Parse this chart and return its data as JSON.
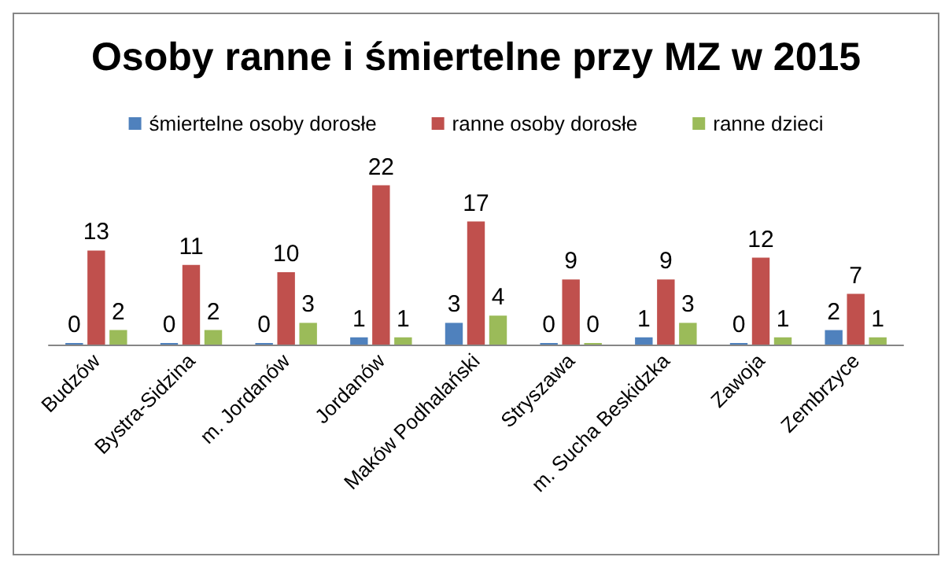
{
  "chart_data": {
    "type": "bar",
    "title": "Osoby ranne i śmiertelne przy MZ w 2015",
    "categories": [
      "Budzów",
      "Bystra-Sidzina",
      "m. Jordanów",
      "Jordanów",
      "Maków Podhalański",
      "Stryszawa",
      "m. Sucha Beskidzka",
      "Zawoja",
      "Zembrzyce"
    ],
    "series": [
      {
        "name": "śmiertelne osoby dorosłe",
        "color": "#4f81bd",
        "values": [
          0,
          0,
          0,
          1,
          3,
          0,
          1,
          0,
          2
        ]
      },
      {
        "name": "ranne osoby dorosłe",
        "color": "#c0504d",
        "values": [
          13,
          11,
          10,
          22,
          17,
          9,
          9,
          12,
          7
        ]
      },
      {
        "name": "ranne dzieci",
        "color": "#9bbb59",
        "values": [
          2,
          2,
          3,
          1,
          4,
          0,
          3,
          1,
          1
        ]
      }
    ],
    "data_labels": true,
    "legend": "top",
    "tick_labels": "x"
  }
}
